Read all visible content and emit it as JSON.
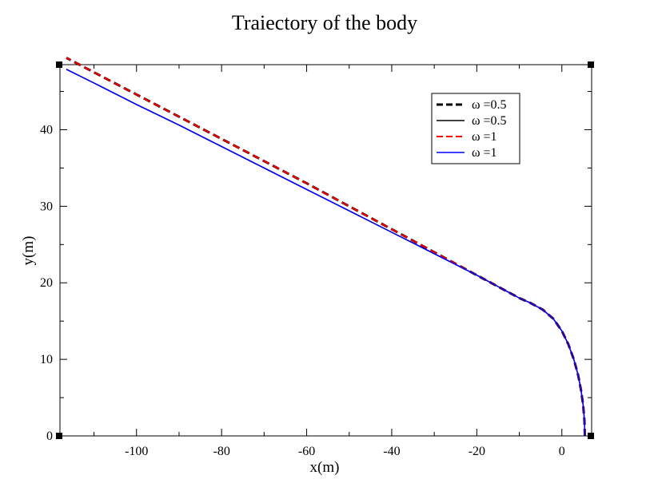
{
  "chart_data": {
    "type": "line",
    "title": "Traiectory of the body",
    "xlabel": "x(m)",
    "ylabel": "y(m)",
    "xlim": [
      -118,
      7
    ],
    "ylim": [
      0,
      48.5
    ],
    "xticks": [
      -100,
      -80,
      -60,
      -40,
      -20,
      0
    ],
    "xtick_labels": [
      "-100",
      "-80",
      "-60",
      "-40",
      "-20",
      "0"
    ],
    "yticks": [
      0,
      10,
      20,
      30,
      40
    ],
    "ytick_labels": [
      "0",
      "10",
      "20",
      "30",
      "40"
    ],
    "grid": false,
    "legend_position": "top-right",
    "series": [
      {
        "name": "ω =0.5",
        "color": "#000000",
        "style": "dashed-bold",
        "x": [
          5.4,
          5.3,
          5.0,
          4.5,
          3.8,
          2.8,
          1.5,
          0,
          -2,
          -4.5,
          -7.5,
          -10,
          -15,
          -20,
          -30,
          -40,
          -50,
          -60,
          -70,
          -80,
          -90,
          -100,
          -110,
          -116.5
        ],
        "y": [
          0,
          2,
          4,
          6,
          8,
          10,
          12,
          13.7,
          15.3,
          16.5,
          17.4,
          18.0,
          19.5,
          21.0,
          24.0,
          27.0,
          30.0,
          33.0,
          35.9,
          38.8,
          41.7,
          44.6,
          47.5,
          49.4
        ]
      },
      {
        "name": "ω =0.5",
        "color": "#000000",
        "style": "solid",
        "x": [
          5.4,
          5.3,
          5.0,
          4.5,
          3.8,
          2.8,
          1.5,
          0,
          -2,
          -4.5,
          -7.5,
          -10,
          -15,
          -20,
          -30,
          -40,
          -50,
          -60,
          -70,
          -80,
          -90,
          -100,
          -110,
          -116.5
        ],
        "y": [
          0,
          2,
          4,
          6,
          8,
          10,
          12,
          13.7,
          15.3,
          16.5,
          17.4,
          18.0,
          19.5,
          21.0,
          23.8,
          26.6,
          29.4,
          32.2,
          35.0,
          37.8,
          40.6,
          43.3,
          46.1,
          47.9
        ]
      },
      {
        "name": "ω =1",
        "color": "#ff0000",
        "style": "dashed",
        "x": [
          5.4,
          5.3,
          5.0,
          4.5,
          3.8,
          2.8,
          1.5,
          0,
          -2,
          -4.5,
          -7.5,
          -10,
          -15,
          -20,
          -30,
          -40,
          -50,
          -60,
          -70,
          -80,
          -90,
          -100,
          -110,
          -116.5
        ],
        "y": [
          0,
          2,
          4,
          6,
          8,
          10,
          12,
          13.7,
          15.3,
          16.5,
          17.4,
          18.0,
          19.5,
          21.0,
          24.0,
          27.0,
          30.0,
          33.0,
          35.9,
          38.8,
          41.7,
          44.6,
          47.5,
          49.4
        ]
      },
      {
        "name": "ω =1",
        "color": "#0000ff",
        "style": "solid",
        "x": [
          5.4,
          5.3,
          5.0,
          4.5,
          3.8,
          2.8,
          1.5,
          0,
          -2,
          -4.5,
          -7.5,
          -10,
          -15,
          -20,
          -30,
          -40,
          -50,
          -60,
          -70,
          -80,
          -90,
          -100,
          -110,
          -116.5
        ],
        "y": [
          0,
          2,
          4,
          6,
          8,
          10,
          12,
          13.7,
          15.3,
          16.5,
          17.4,
          18.0,
          19.5,
          21.0,
          23.8,
          26.6,
          29.4,
          32.2,
          35.0,
          37.8,
          40.6,
          43.3,
          46.1,
          47.9
        ]
      }
    ]
  }
}
